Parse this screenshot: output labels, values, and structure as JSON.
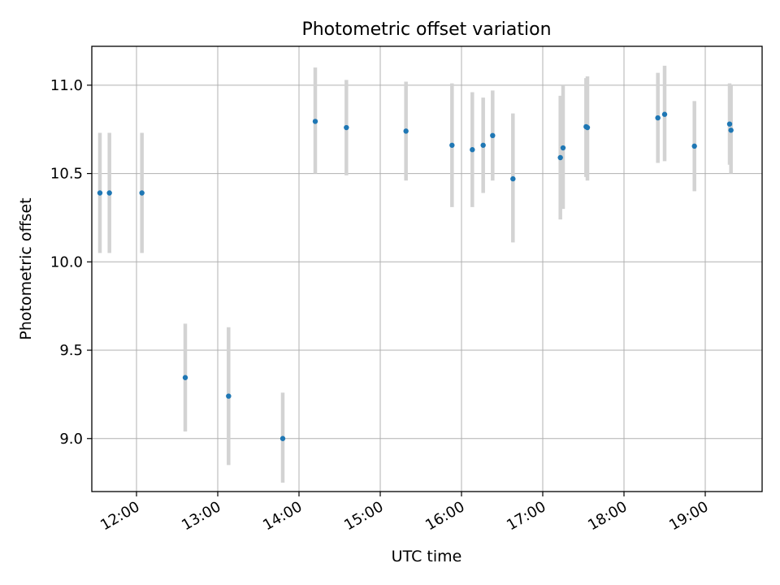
{
  "chart_data": {
    "type": "scatter",
    "title": "Photometric offset variation",
    "xlabel": "UTC time",
    "ylabel": "Photometric offset",
    "x_unit": "UTC time of day (HH:MM)",
    "xlim": [
      "11:27",
      "19:42"
    ],
    "ylim": [
      8.7,
      11.22
    ],
    "x_ticks": [
      "12:00",
      "13:00",
      "14:00",
      "15:00",
      "16:00",
      "17:00",
      "18:00",
      "19:00"
    ],
    "y_ticks": [
      9.0,
      9.5,
      10.0,
      10.5,
      11.0
    ],
    "y_tick_labels": [
      "9.0",
      "9.5",
      "10.0",
      "10.5",
      "11.0"
    ],
    "grid": true,
    "point_color": "#1f77b4",
    "errorbar_color": "#d3d3d3",
    "points": [
      {
        "x": "11:33",
        "y": 10.39,
        "yerr": [
          10.05,
          10.73
        ]
      },
      {
        "x": "11:40",
        "y": 10.39,
        "yerr": [
          10.05,
          10.73
        ]
      },
      {
        "x": "12:04",
        "y": 10.39,
        "yerr": [
          10.05,
          10.73
        ]
      },
      {
        "x": "12:36",
        "y": 9.345,
        "yerr": [
          9.04,
          9.65
        ]
      },
      {
        "x": "13:08",
        "y": 9.24,
        "yerr": [
          8.85,
          9.63
        ]
      },
      {
        "x": "13:48",
        "y": 9.0,
        "yerr": [
          8.75,
          9.26
        ]
      },
      {
        "x": "14:12",
        "y": 10.795,
        "yerr": [
          10.5,
          11.1
        ]
      },
      {
        "x": "14:35",
        "y": 10.76,
        "yerr": [
          10.49,
          11.03
        ]
      },
      {
        "x": "15:19",
        "y": 10.74,
        "yerr": [
          10.46,
          11.02
        ]
      },
      {
        "x": "15:53",
        "y": 10.66,
        "yerr": [
          10.31,
          11.01
        ]
      },
      {
        "x": "16:08",
        "y": 10.635,
        "yerr": [
          10.31,
          10.96
        ]
      },
      {
        "x": "16:16",
        "y": 10.66,
        "yerr": [
          10.39,
          10.93
        ]
      },
      {
        "x": "16:23",
        "y": 10.715,
        "yerr": [
          10.46,
          10.97
        ]
      },
      {
        "x": "16:38",
        "y": 10.47,
        "yerr": [
          10.11,
          10.84
        ]
      },
      {
        "x": "17:13",
        "y": 10.59,
        "yerr": [
          10.24,
          10.94
        ]
      },
      {
        "x": "17:15",
        "y": 10.645,
        "yerr": [
          10.3,
          11.0
        ]
      },
      {
        "x": "17:32",
        "y": 10.765,
        "yerr": [
          10.48,
          11.04
        ]
      },
      {
        "x": "17:33",
        "y": 10.76,
        "yerr": [
          10.46,
          11.05
        ]
      },
      {
        "x": "18:25",
        "y": 10.815,
        "yerr": [
          10.56,
          11.07
        ]
      },
      {
        "x": "18:30",
        "y": 10.835,
        "yerr": [
          10.57,
          11.11
        ]
      },
      {
        "x": "18:52",
        "y": 10.655,
        "yerr": [
          10.4,
          10.91
        ]
      },
      {
        "x": "19:18",
        "y": 10.78,
        "yerr": [
          10.55,
          11.01
        ]
      },
      {
        "x": "19:19",
        "y": 10.745,
        "yerr": [
          10.5,
          11.0
        ]
      }
    ]
  }
}
